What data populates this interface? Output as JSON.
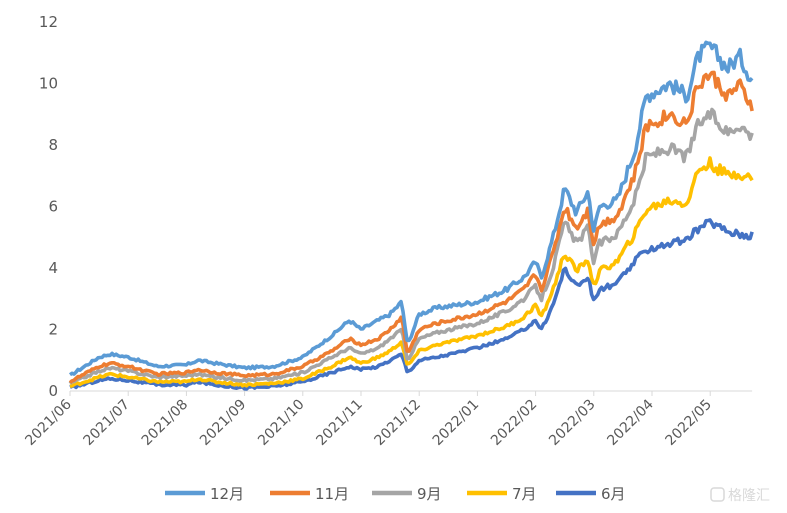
{
  "chart_data": {
    "type": "line",
    "title": "",
    "xlabel": "",
    "ylabel": "",
    "ylim": [
      0,
      12
    ],
    "yticks": [
      0,
      2,
      4,
      6,
      8,
      10,
      12
    ],
    "x_tick_labels": [
      "2021/06",
      "2021/07",
      "2021/08",
      "2021/09",
      "2021/10",
      "2021/11",
      "2021/12",
      "2022/01",
      "2022/02",
      "2022/03",
      "2022/04",
      "2022/05"
    ],
    "x_end": "2022/05 (late)",
    "grid": false,
    "legend_position": "bottom",
    "series": [
      {
        "name": "12月",
        "color": "#5B9BD5",
        "points": [
          [
            0,
            0.5
          ],
          [
            0.5,
            1.1
          ],
          [
            0.7,
            1.2
          ],
          [
            1.0,
            1.1
          ],
          [
            1.5,
            0.8
          ],
          [
            2.0,
            0.85
          ],
          [
            2.2,
            1.0
          ],
          [
            2.5,
            0.9
          ],
          [
            3.0,
            0.75
          ],
          [
            3.5,
            0.8
          ],
          [
            4.0,
            1.1
          ],
          [
            4.5,
            1.8
          ],
          [
            4.8,
            2.3
          ],
          [
            5.0,
            2.0
          ],
          [
            5.3,
            2.3
          ],
          [
            5.5,
            2.5
          ],
          [
            5.7,
            2.9
          ],
          [
            5.8,
            1.5
          ],
          [
            6.0,
            2.5
          ],
          [
            6.3,
            2.7
          ],
          [
            7.0,
            2.9
          ],
          [
            7.5,
            3.3
          ],
          [
            7.8,
            3.7
          ],
          [
            8.0,
            4.2
          ],
          [
            8.1,
            3.7
          ],
          [
            8.3,
            5.0
          ],
          [
            8.5,
            6.6
          ],
          [
            8.7,
            5.8
          ],
          [
            8.9,
            6.5
          ],
          [
            9.0,
            5.2
          ],
          [
            9.1,
            6.0
          ],
          [
            9.4,
            6.2
          ],
          [
            9.7,
            7.8
          ],
          [
            9.9,
            9.6
          ],
          [
            10.3,
            10.0
          ],
          [
            10.6,
            9.6
          ],
          [
            10.8,
            10.9
          ],
          [
            11.0,
            11.2
          ],
          [
            11.3,
            10.5
          ],
          [
            11.5,
            10.9
          ],
          [
            11.7,
            10.2
          ]
        ]
      },
      {
        "name": "11月",
        "color": "#ED7D31",
        "points": [
          [
            0,
            0.3
          ],
          [
            0.5,
            0.8
          ],
          [
            0.7,
            0.9
          ],
          [
            1.0,
            0.8
          ],
          [
            1.5,
            0.55
          ],
          [
            2.0,
            0.6
          ],
          [
            2.2,
            0.7
          ],
          [
            2.5,
            0.6
          ],
          [
            3.0,
            0.5
          ],
          [
            3.5,
            0.55
          ],
          [
            4.0,
            0.8
          ],
          [
            4.5,
            1.3
          ],
          [
            4.8,
            1.7
          ],
          [
            5.0,
            1.5
          ],
          [
            5.3,
            1.7
          ],
          [
            5.5,
            2.0
          ],
          [
            5.7,
            2.4
          ],
          [
            5.8,
            1.2
          ],
          [
            6.0,
            2.0
          ],
          [
            6.3,
            2.2
          ],
          [
            7.0,
            2.5
          ],
          [
            7.5,
            2.9
          ],
          [
            7.8,
            3.3
          ],
          [
            8.0,
            3.8
          ],
          [
            8.1,
            3.3
          ],
          [
            8.3,
            4.5
          ],
          [
            8.5,
            6.0
          ],
          [
            8.7,
            5.3
          ],
          [
            8.9,
            5.9
          ],
          [
            9.0,
            4.8
          ],
          [
            9.1,
            5.4
          ],
          [
            9.4,
            5.7
          ],
          [
            9.7,
            7.0
          ],
          [
            9.9,
            8.6
          ],
          [
            10.3,
            9.0
          ],
          [
            10.6,
            8.7
          ],
          [
            10.8,
            10.0
          ],
          [
            11.0,
            10.3
          ],
          [
            11.3,
            9.6
          ],
          [
            11.5,
            9.9
          ],
          [
            11.7,
            9.3
          ]
        ]
      },
      {
        "name": "9月",
        "color": "#A5A5A5",
        "points": [
          [
            0,
            0.25
          ],
          [
            0.5,
            0.65
          ],
          [
            0.7,
            0.75
          ],
          [
            1.0,
            0.65
          ],
          [
            1.5,
            0.45
          ],
          [
            2.0,
            0.5
          ],
          [
            2.2,
            0.55
          ],
          [
            2.5,
            0.45
          ],
          [
            3.0,
            0.35
          ],
          [
            3.5,
            0.4
          ],
          [
            4.0,
            0.6
          ],
          [
            4.5,
            1.1
          ],
          [
            4.8,
            1.4
          ],
          [
            5.0,
            1.2
          ],
          [
            5.3,
            1.4
          ],
          [
            5.5,
            1.7
          ],
          [
            5.7,
            2.0
          ],
          [
            5.8,
            1.0
          ],
          [
            6.0,
            1.7
          ],
          [
            6.3,
            1.9
          ],
          [
            7.0,
            2.2
          ],
          [
            7.5,
            2.6
          ],
          [
            7.8,
            3.0
          ],
          [
            8.0,
            3.4
          ],
          [
            8.1,
            3.0
          ],
          [
            8.3,
            4.0
          ],
          [
            8.5,
            5.5
          ],
          [
            8.7,
            4.8
          ],
          [
            8.9,
            5.3
          ],
          [
            9.0,
            4.2
          ],
          [
            9.1,
            4.8
          ],
          [
            9.4,
            5.1
          ],
          [
            9.7,
            6.2
          ],
          [
            9.9,
            7.6
          ],
          [
            10.3,
            7.9
          ],
          [
            10.6,
            7.6
          ],
          [
            10.8,
            8.7
          ],
          [
            11.0,
            9.0
          ],
          [
            11.3,
            8.4
          ],
          [
            11.5,
            8.7
          ],
          [
            11.7,
            8.3
          ]
        ]
      },
      {
        "name": "7月",
        "color": "#FFC000",
        "points": [
          [
            0,
            0.15
          ],
          [
            0.5,
            0.45
          ],
          [
            0.7,
            0.55
          ],
          [
            1.0,
            0.45
          ],
          [
            1.5,
            0.3
          ],
          [
            2.0,
            0.3
          ],
          [
            2.2,
            0.4
          ],
          [
            2.5,
            0.3
          ],
          [
            3.0,
            0.2
          ],
          [
            3.5,
            0.25
          ],
          [
            4.0,
            0.4
          ],
          [
            4.5,
            0.8
          ],
          [
            4.8,
            1.1
          ],
          [
            5.0,
            0.9
          ],
          [
            5.3,
            1.1
          ],
          [
            5.5,
            1.3
          ],
          [
            5.7,
            1.6
          ],
          [
            5.8,
            0.8
          ],
          [
            6.0,
            1.3
          ],
          [
            6.3,
            1.5
          ],
          [
            7.0,
            1.8
          ],
          [
            7.5,
            2.1
          ],
          [
            7.8,
            2.4
          ],
          [
            8.0,
            2.8
          ],
          [
            8.1,
            2.4
          ],
          [
            8.3,
            3.3
          ],
          [
            8.5,
            4.5
          ],
          [
            8.7,
            3.9
          ],
          [
            8.9,
            4.3
          ],
          [
            9.0,
            3.4
          ],
          [
            9.1,
            3.9
          ],
          [
            9.4,
            4.2
          ],
          [
            9.7,
            5.1
          ],
          [
            9.9,
            5.9
          ],
          [
            10.3,
            6.2
          ],
          [
            10.6,
            6.1
          ],
          [
            10.8,
            7.2
          ],
          [
            11.0,
            7.4
          ],
          [
            11.3,
            7.0
          ],
          [
            11.5,
            7.1
          ],
          [
            11.7,
            6.9
          ]
        ]
      },
      {
        "name": "6月",
        "color": "#4472C4",
        "points": [
          [
            0,
            0.1
          ],
          [
            0.5,
            0.35
          ],
          [
            0.7,
            0.4
          ],
          [
            1.0,
            0.35
          ],
          [
            1.5,
            0.2
          ],
          [
            2.0,
            0.2
          ],
          [
            2.2,
            0.3
          ],
          [
            2.5,
            0.2
          ],
          [
            3.0,
            0.1
          ],
          [
            3.5,
            0.15
          ],
          [
            4.0,
            0.3
          ],
          [
            4.5,
            0.6
          ],
          [
            4.8,
            0.8
          ],
          [
            5.0,
            0.7
          ],
          [
            5.3,
            0.8
          ],
          [
            5.5,
            1.0
          ],
          [
            5.7,
            1.2
          ],
          [
            5.8,
            0.6
          ],
          [
            6.0,
            1.0
          ],
          [
            6.3,
            1.1
          ],
          [
            7.0,
            1.4
          ],
          [
            7.5,
            1.7
          ],
          [
            7.8,
            2.0
          ],
          [
            8.0,
            2.3
          ],
          [
            8.1,
            2.0
          ],
          [
            8.3,
            2.8
          ],
          [
            8.5,
            4.0
          ],
          [
            8.7,
            3.4
          ],
          [
            8.9,
            3.7
          ],
          [
            9.0,
            2.9
          ],
          [
            9.1,
            3.3
          ],
          [
            9.4,
            3.5
          ],
          [
            9.7,
            4.2
          ],
          [
            9.9,
            4.6
          ],
          [
            10.3,
            4.8
          ],
          [
            10.6,
            4.9
          ],
          [
            10.8,
            5.3
          ],
          [
            11.0,
            5.5
          ],
          [
            11.3,
            5.2
          ],
          [
            11.5,
            5.1
          ],
          [
            11.7,
            5.05
          ]
        ]
      }
    ]
  },
  "watermark": {
    "text": "格隆汇"
  }
}
